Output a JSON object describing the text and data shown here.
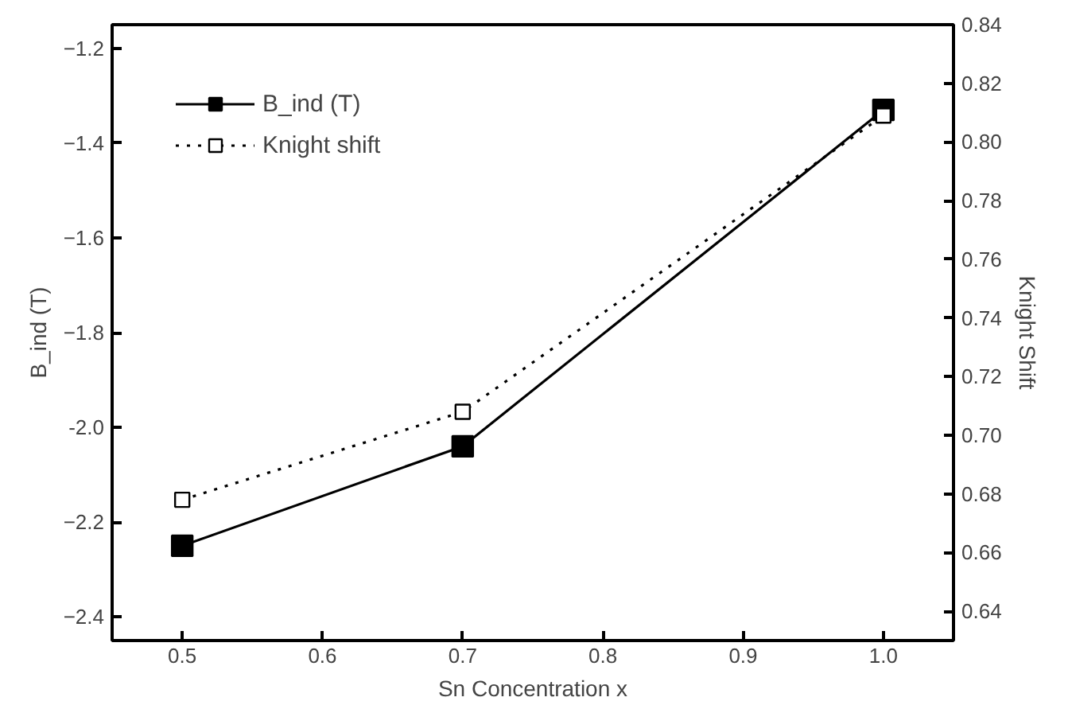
{
  "chart_data": {
    "type": "line",
    "xlabel": "Sn Concentration x",
    "ylabel": "B_ind (T)",
    "y2label": "Knight Shift",
    "x": [
      0.5,
      0.7,
      1.0
    ],
    "series": [
      {
        "name": "B_ind (T)",
        "color": "#000000",
        "values": [
          -2.25,
          -2.04,
          -1.33
        ],
        "marker": "square",
        "line_style": "solid"
      },
      {
        "name": "Knight shift",
        "color": "#000000",
        "values": [
          0.678,
          0.708,
          0.809
        ],
        "marker": "square",
        "line_style": "dotted",
        "axis": "y2"
      }
    ],
    "xlim": [
      0.45,
      1.05
    ],
    "xticks": [
      0.5,
      0.6,
      0.7,
      0.8,
      0.9,
      {
        "value": 1.0,
        "label": "1.0"
      }
    ],
    "ylim": [
      -2.45,
      -1.15
    ],
    "yticks": [
      -2.4,
      -2.2,
      {
        "value": -2.0,
        "label": "-2.0"
      },
      -1.8,
      -1.6,
      -1.4,
      -1.2
    ],
    "y2lim": [
      0.63,
      0.84
    ],
    "y2ticks": [
      {
        "value": 0.64,
        "label": "0.64"
      },
      {
        "value": 0.66,
        "label": "0.66"
      },
      {
        "value": 0.68,
        "label": "0.68"
      },
      {
        "value": 0.7,
        "label": "0.70"
      },
      {
        "value": 0.72,
        "label": "0.72"
      },
      {
        "value": 0.74,
        "label": "0.74"
      },
      {
        "value": 0.76,
        "label": "0.76"
      },
      {
        "value": 0.78,
        "label": "0.78"
      },
      {
        "value": 0.8,
        "label": "0.80"
      },
      {
        "value": 0.82,
        "label": "0.82"
      },
      {
        "value": 0.84,
        "label": "0.84"
      }
    ],
    "grid": false,
    "legend": "top left"
  }
}
